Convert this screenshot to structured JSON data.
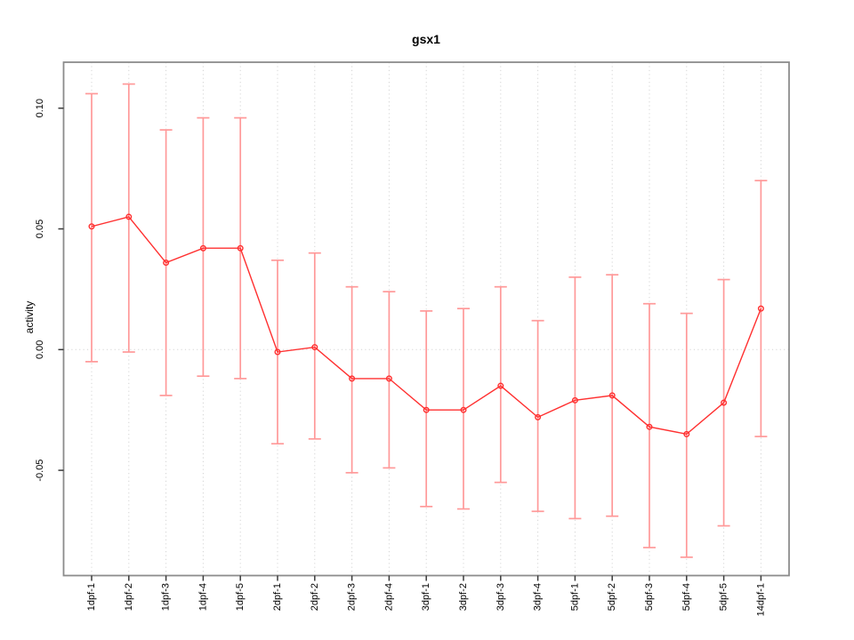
{
  "title": "gsx1",
  "chart_data": {
    "type": "line",
    "title": "gsx1",
    "xlabel": "",
    "ylabel": "activity",
    "categories": [
      "1dpf-1",
      "1dpf-2",
      "1dpf-3",
      "1dpf-4",
      "1dpf-5",
      "2dpf-1",
      "2dpf-2",
      "2dpf-3",
      "2dpf-4",
      "3dpf-1",
      "3dpf-2",
      "3dpf-3",
      "3dpf-4",
      "5dpf-1",
      "5dpf-2",
      "5dpf-3",
      "5dpf-4",
      "5dpf-5",
      "14dpf-1"
    ],
    "series": [
      {
        "name": "gsx1 activity",
        "values": [
          0.051,
          0.055,
          0.036,
          0.042,
          0.042,
          -0.001,
          0.001,
          -0.012,
          -0.012,
          -0.025,
          -0.025,
          -0.015,
          -0.028,
          -0.021,
          -0.019,
          -0.032,
          -0.035,
          -0.022,
          0.017
        ]
      }
    ],
    "error_bars": {
      "upper": [
        0.106,
        0.11,
        0.091,
        0.096,
        0.096,
        0.037,
        0.04,
        0.026,
        0.024,
        0.016,
        0.017,
        0.026,
        0.012,
        0.03,
        0.031,
        0.019,
        0.015,
        0.029,
        0.07
      ],
      "lower": [
        -0.005,
        -0.001,
        -0.019,
        -0.011,
        -0.012,
        -0.039,
        -0.037,
        -0.051,
        -0.049,
        -0.065,
        -0.066,
        -0.055,
        -0.067,
        -0.07,
        -0.069,
        -0.082,
        -0.086,
        -0.073,
        -0.036
      ]
    },
    "yticks": [
      -0.05,
      0,
      0.05,
      0.1
    ],
    "ytick_labels": [
      "-0.05",
      "0.00",
      "0.05",
      "0.10"
    ],
    "ylim": [
      -0.094,
      0.119
    ],
    "grid": {
      "vertical": "dotted gridline at every category",
      "horizontal": "dotted gridline at y=0"
    },
    "legend": "none",
    "point_style": "open-circle",
    "colors": {
      "series": "#ff3030",
      "error_bar": "#ff9999",
      "grid": "#d4d4d4",
      "box": "#8c8c8c",
      "tick": "#3a3a3a",
      "text": "#000000",
      "background": "#ffffff"
    }
  }
}
